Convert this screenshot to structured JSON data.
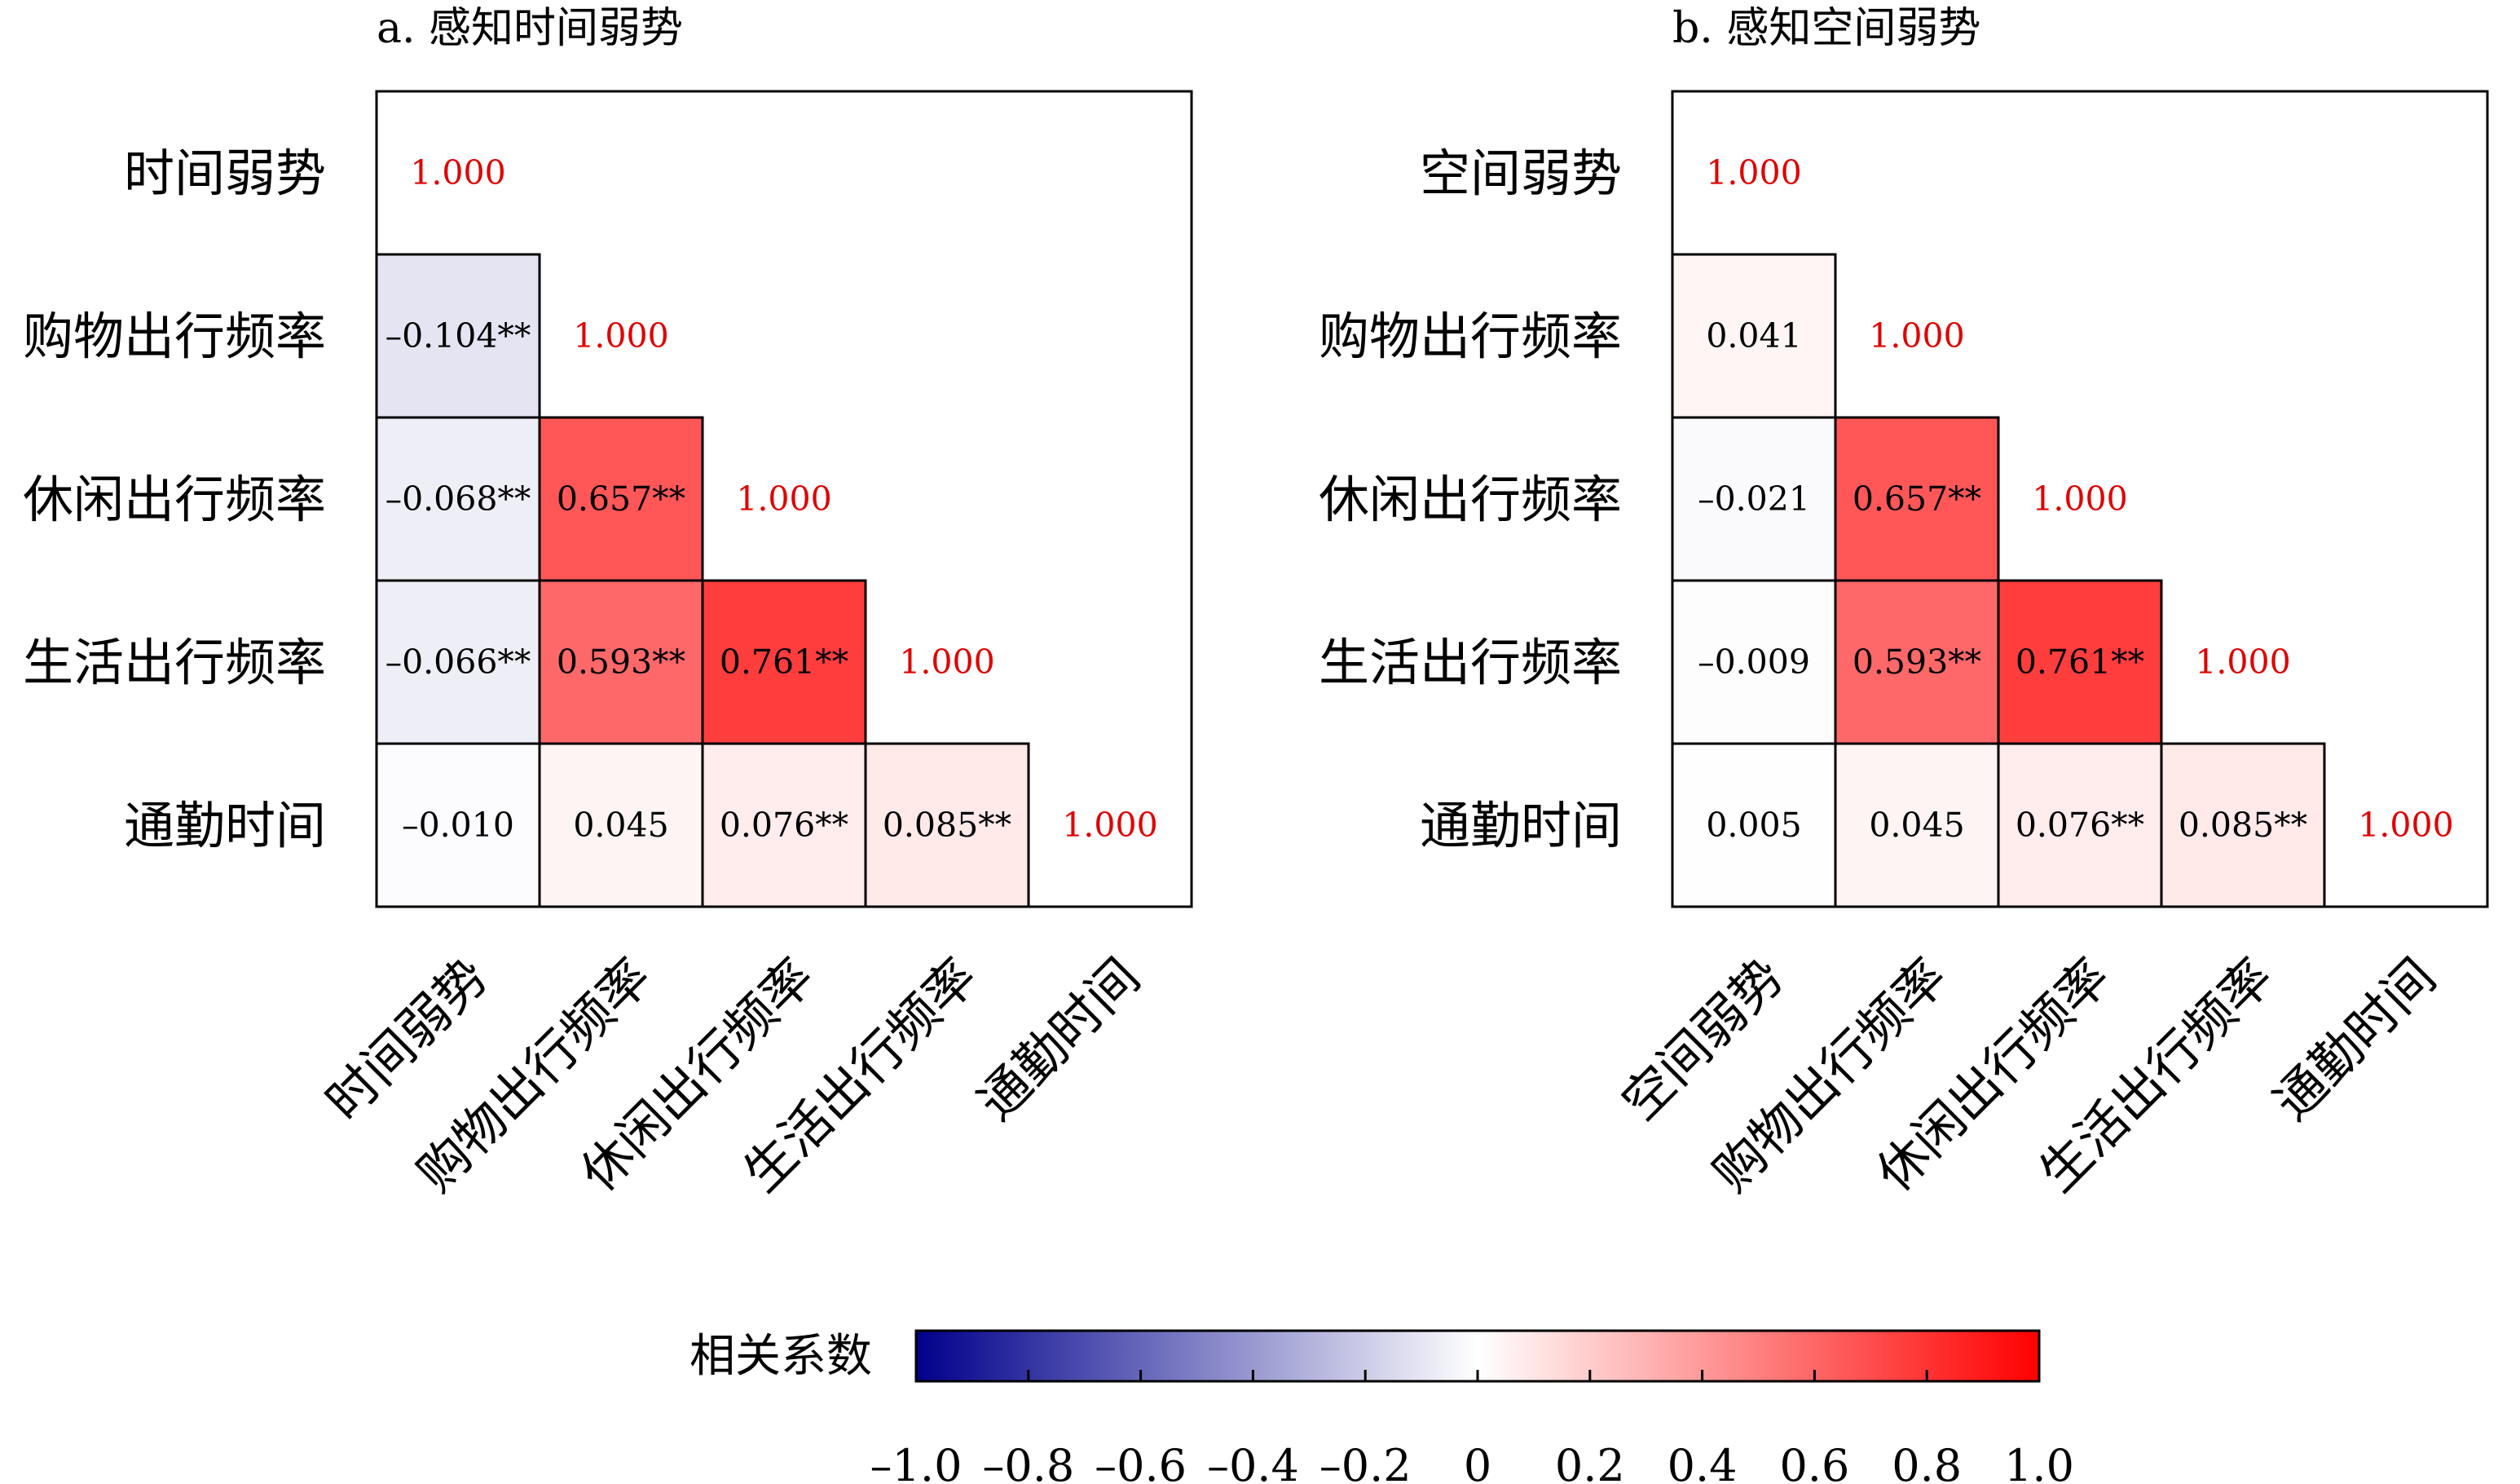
{
  "chart_data": [
    {
      "type": "heatmap",
      "title": "a. 感知时间弱势",
      "variables": [
        "时间弱势",
        "购物出行频率",
        "休闲出行频率",
        "生活出行频率",
        "通勤时间"
      ],
      "matrix": [
        [
          1.0,
          null,
          null,
          null,
          null
        ],
        [
          -0.104,
          1.0,
          null,
          null,
          null
        ],
        [
          -0.068,
          0.657,
          1.0,
          null,
          null
        ],
        [
          -0.066,
          0.593,
          0.761,
          1.0,
          null
        ],
        [
          -0.01,
          0.045,
          0.076,
          0.085,
          1.0
        ]
      ],
      "labels": [
        [
          "1.000",
          "",
          "",
          "",
          ""
        ],
        [
          "–0.104**",
          "1.000",
          "",
          "",
          ""
        ],
        [
          "–0.068**",
          "0.657**",
          "1.000",
          "",
          ""
        ],
        [
          "–0.066**",
          "0.593**",
          "0.761**",
          "1.000",
          ""
        ],
        [
          "–0.010",
          "0.045",
          "0.076**",
          "0.085**",
          "1.000"
        ]
      ]
    },
    {
      "type": "heatmap",
      "title": "b. 感知空间弱势",
      "variables": [
        "空间弱势",
        "购物出行频率",
        "休闲出行频率",
        "生活出行频率",
        "通勤时间"
      ],
      "matrix": [
        [
          1.0,
          null,
          null,
          null,
          null
        ],
        [
          0.041,
          1.0,
          null,
          null,
          null
        ],
        [
          -0.021,
          0.657,
          1.0,
          null,
          null
        ],
        [
          -0.009,
          0.593,
          0.761,
          1.0,
          null
        ],
        [
          0.005,
          0.045,
          0.076,
          0.085,
          1.0
        ]
      ],
      "labels": [
        [
          "1.000",
          "",
          "",
          "",
          ""
        ],
        [
          "0.041",
          "1.000",
          "",
          "",
          ""
        ],
        [
          "–0.021",
          "0.657**",
          "1.000",
          "",
          ""
        ],
        [
          "–0.009",
          "0.593**",
          "0.761**",
          "1.000",
          ""
        ],
        [
          "0.005",
          "0.045",
          "0.076**",
          "0.085**",
          "1.000"
        ]
      ]
    }
  ],
  "colorbar": {
    "title": "相关系数",
    "range": [
      -1.0,
      1.0
    ],
    "ticks": [
      -1.0,
      -0.8,
      -0.6,
      -0.4,
      -0.2,
      0,
      0.2,
      0.4,
      0.6,
      0.8,
      1.0
    ],
    "tick_labels": [
      "–1.0",
      "–0.8",
      "–0.6",
      "–0.4",
      "–0.2",
      "0",
      "0.2",
      "0.4",
      "0.6",
      "0.8",
      "1.0"
    ],
    "colors": {
      "negative": "#00008b",
      "zero": "#ffffff",
      "positive": "#ff0000"
    }
  },
  "colors": {
    "diagonal_text": "#e00000",
    "cell_text": "#000000",
    "frame": "#000000"
  }
}
